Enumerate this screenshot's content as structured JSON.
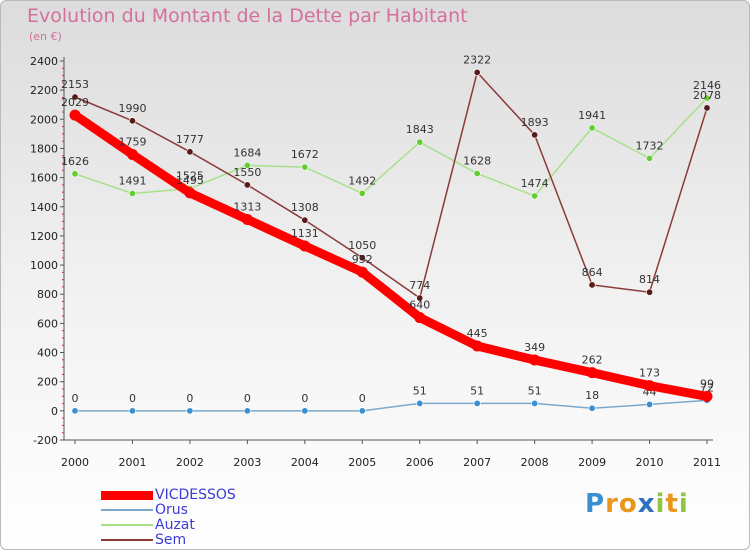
{
  "brand": {
    "logo_letters": [
      {
        "char": "P",
        "color": "#3a8fd0"
      },
      {
        "char": "r",
        "color": "#e8961e"
      },
      {
        "char": "o",
        "color": "#e8961e"
      },
      {
        "char": "x",
        "color": "#2e6fc0"
      },
      {
        "char": "i",
        "color": "#8ec63f"
      },
      {
        "char": "t",
        "color": "#e8961e"
      },
      {
        "char": "i",
        "color": "#8ec63f"
      }
    ]
  },
  "chart_data": {
    "type": "line",
    "title": "Evolution du Montant de la Dette par Habitant",
    "subtitle": "(en €)",
    "xlabel": "",
    "ylabel": "",
    "categories": [
      "2000",
      "2001",
      "2002",
      "2003",
      "2004",
      "2005",
      "2006",
      "2007",
      "2008",
      "2009",
      "2010",
      "2011"
    ],
    "ylim": [
      -200,
      2400
    ],
    "yticks": [
      -200,
      0,
      200,
      400,
      600,
      800,
      1000,
      1200,
      1400,
      1600,
      1800,
      2000,
      2200,
      2400
    ],
    "grid": false,
    "legend_position": "bottom-left",
    "series": [
      {
        "name": "VICDESSOS",
        "color": "#ff0000",
        "marker_color": "#ff0000",
        "values": [
          2029,
          1759,
          1495,
          1313,
          1131,
          952,
          640,
          445,
          349,
          262,
          173,
          99
        ]
      },
      {
        "name": "Orus",
        "color": "#7aa8cc",
        "marker_color": "#3a8fd0",
        "values": [
          0,
          0,
          0,
          0,
          0,
          0,
          51,
          51,
          51,
          18,
          44,
          72
        ]
      },
      {
        "name": "Auzat",
        "color": "#a8e08a",
        "marker_color": "#66cc33",
        "values": [
          1626,
          1491,
          1525,
          1684,
          1672,
          1492,
          1843,
          1628,
          1474,
          1941,
          1732,
          2146
        ]
      },
      {
        "name": "Sem",
        "color": "#8b3a3a",
        "marker_color": "#5a1a1a",
        "values": [
          2153,
          1990,
          1777,
          1550,
          1308,
          1050,
          774,
          2322,
          1893,
          864,
          814,
          2078
        ]
      }
    ]
  }
}
